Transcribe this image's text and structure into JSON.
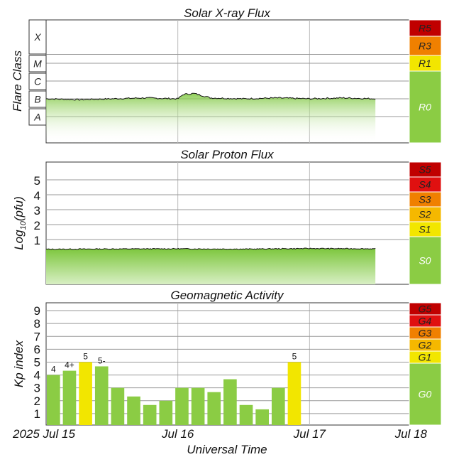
{
  "chart_data": [
    {
      "type": "line",
      "title": "Solar X-ray Flux",
      "ylabel": "Flare Class",
      "flare_classes": [
        "X",
        "M",
        "C",
        "B",
        "A"
      ],
      "x": [
        "2025-07-15T00:00",
        "2025-07-15T06:00",
        "2025-07-15T12:00",
        "2025-07-15T18:00",
        "2025-07-16T00:00",
        "2025-07-16T01:00",
        "2025-07-16T03:00",
        "2025-07-16T06:00",
        "2025-07-16T12:00",
        "2025-07-16T18:00",
        "2025-07-17T00:00",
        "2025-07-17T06:00",
        "2025-07-17T12:00"
      ],
      "y_log10": [
        -6.0,
        -6.05,
        -6.0,
        -5.95,
        -6.0,
        -5.75,
        -5.7,
        -5.95,
        -6.0,
        -5.95,
        -6.0,
        -5.95,
        -6.0
      ],
      "scale_labels": [
        {
          "label": "R5",
          "color": "#c00000"
        },
        {
          "label": "R3",
          "color": "#f08000"
        },
        {
          "label": "R1",
          "color": "#f2e600"
        },
        {
          "label": "R0",
          "color": "#8bcc44"
        }
      ]
    },
    {
      "type": "line",
      "title": "Solar Proton Flux",
      "ylabel": "Log10(pfu)",
      "yticks": [
        "1",
        "2",
        "3",
        "4",
        "5"
      ],
      "x": [
        "2025-07-15T00:00",
        "2025-07-15T12:00",
        "2025-07-16T00:00",
        "2025-07-16T12:00",
        "2025-07-17T00:00",
        "2025-07-17T12:00"
      ],
      "y_log10": [
        -0.65,
        -0.63,
        -0.62,
        -0.64,
        -0.6,
        -0.62
      ],
      "scale_labels": [
        {
          "label": "S5",
          "color": "#c00000"
        },
        {
          "label": "S4",
          "color": "#e01010"
        },
        {
          "label": "S3",
          "color": "#f08000"
        },
        {
          "label": "S2",
          "color": "#f5b800"
        },
        {
          "label": "S1",
          "color": "#f2e600"
        },
        {
          "label": "S0",
          "color": "#8bcc44"
        }
      ]
    },
    {
      "type": "bar",
      "title": "Geomagnetic Activity",
      "ylabel": "Kp index",
      "xlabel": "Universal Time",
      "ylim": [
        0,
        9.5
      ],
      "yticks": [
        "1",
        "2",
        "3",
        "4",
        "5",
        "6",
        "7",
        "8",
        "9"
      ],
      "xticks": [
        "2025 Jul 15",
        "Jul 16",
        "Jul 17",
        "Jul 18"
      ],
      "values": [
        4.0,
        4.33,
        5.0,
        4.67,
        3.0,
        2.33,
        1.67,
        2.0,
        3.0,
        3.0,
        2.67,
        3.67,
        1.67,
        1.33,
        3.0,
        5.0
      ],
      "bar_labels": [
        "4",
        "4+",
        "5",
        "5-",
        "",
        "",
        "",
        "",
        "",
        "",
        "",
        "",
        "",
        "",
        "",
        "5"
      ],
      "bar_colors": [
        "#8bcc44",
        "#8bcc44",
        "#f2e600",
        "#8bcc44",
        "#8bcc44",
        "#8bcc44",
        "#8bcc44",
        "#8bcc44",
        "#8bcc44",
        "#8bcc44",
        "#8bcc44",
        "#8bcc44",
        "#8bcc44",
        "#8bcc44",
        "#8bcc44",
        "#f2e600"
      ],
      "scale_labels": [
        {
          "label": "G5",
          "color": "#c00000"
        },
        {
          "label": "G4",
          "color": "#e01010"
        },
        {
          "label": "G3",
          "color": "#f08000"
        },
        {
          "label": "G2",
          "color": "#f5b800"
        },
        {
          "label": "G1",
          "color": "#f2e600"
        },
        {
          "label": "G0",
          "color": "#8bcc44"
        }
      ]
    }
  ]
}
